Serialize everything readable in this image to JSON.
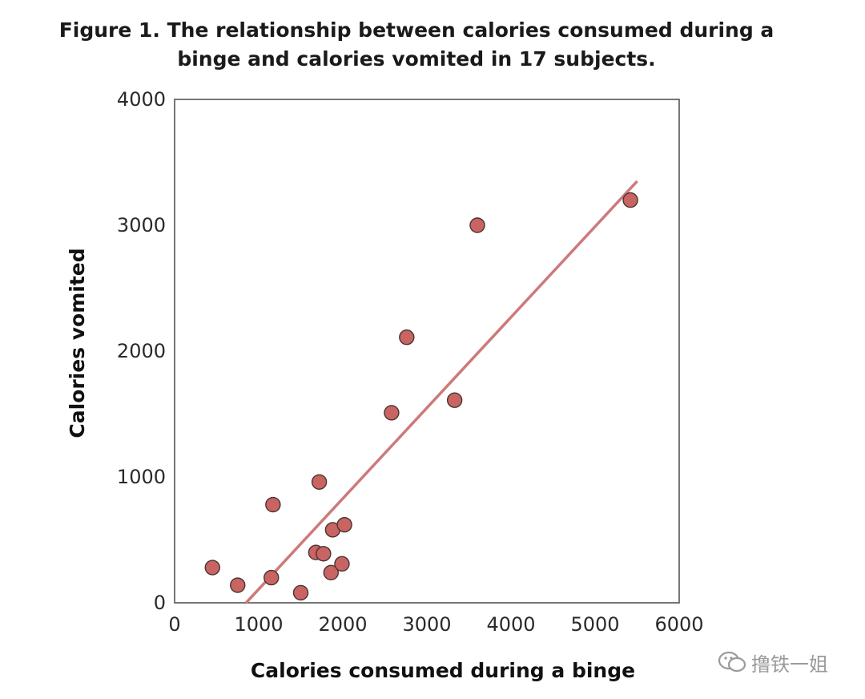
{
  "chart_data": {
    "type": "scatter",
    "title_lines": [
      "Figure 1. The relationship between calories consumed during a",
      "binge and calories vomited in 17 subjects."
    ],
    "xlabel": "Calories consumed during a binge",
    "ylabel": "Calories vomited",
    "xlim": [
      0,
      6000
    ],
    "ylim": [
      0,
      4000
    ],
    "xticks": [
      0,
      1000,
      2000,
      3000,
      4000,
      5000,
      6000
    ],
    "yticks": [
      0,
      1000,
      2000,
      3000,
      4000
    ],
    "grid": false,
    "legend": "none",
    "points": [
      {
        "x": 450,
        "y": 280
      },
      {
        "x": 750,
        "y": 140
      },
      {
        "x": 1150,
        "y": 200
      },
      {
        "x": 1170,
        "y": 780
      },
      {
        "x": 1500,
        "y": 80
      },
      {
        "x": 1680,
        "y": 400
      },
      {
        "x": 1720,
        "y": 960
      },
      {
        "x": 1770,
        "y": 390
      },
      {
        "x": 1860,
        "y": 240
      },
      {
        "x": 1880,
        "y": 580
      },
      {
        "x": 1990,
        "y": 310
      },
      {
        "x": 2020,
        "y": 620
      },
      {
        "x": 2580,
        "y": 1510
      },
      {
        "x": 2760,
        "y": 2110
      },
      {
        "x": 3330,
        "y": 1610
      },
      {
        "x": 3600,
        "y": 3000
      },
      {
        "x": 5420,
        "y": 3200
      }
    ],
    "trendline": {
      "x": [
        850,
        5500
      ],
      "y": [
        0,
        3350
      ]
    },
    "colors": {
      "marker_fill": "#c86462",
      "marker_stroke": "#4a3333",
      "trendline": "#cd7a7a",
      "frame": "#555555"
    }
  },
  "watermark": {
    "text": "撸铁一姐",
    "icon": "wechat-icon"
  }
}
